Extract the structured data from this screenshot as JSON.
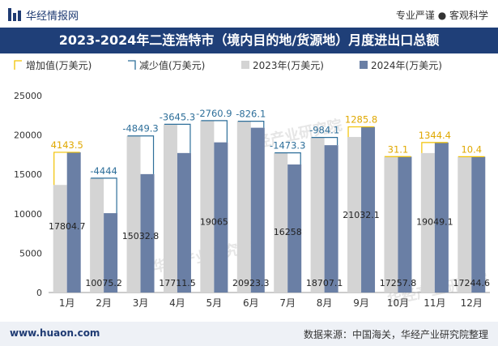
{
  "header": {
    "brand_name": "华经情报网",
    "slogan": "专业严谨 ● 客观科学"
  },
  "title": "2023-2024年二连浩特市（境内目的地/货源地）月度进出口总额",
  "footer": {
    "website": "www.huaon.com",
    "source": "数据来源：中国海关，华经产业研究院整理"
  },
  "colors": {
    "bar_2023": "#d4d4d4",
    "bar_2024": "#6a7fa5",
    "increase": "#f2c200",
    "decrease": "#2e6f9a",
    "title_bg": "#1f3f78"
  },
  "chart_data": {
    "type": "bar",
    "categories": [
      "1月",
      "2月",
      "3月",
      "4月",
      "5月",
      "6月",
      "7月",
      "8月",
      "9月",
      "10月",
      "11月",
      "12月"
    ],
    "series": [
      {
        "name": "2023年(万美元)",
        "values": [
          13661.2,
          14519.2,
          19882.1,
          21356.8,
          21825.9,
          21749.4,
          17731.3,
          19691.2,
          19746.3,
          17226.7,
          17704.7,
          17234.2
        ]
      },
      {
        "name": "2024年(万美元)",
        "values": [
          17804.7,
          10075.2,
          15032.8,
          17711.5,
          19065,
          20923.3,
          16258,
          18707.1,
          21032.1,
          17257.8,
          19049.1,
          17244.6
        ]
      }
    ],
    "changes": {
      "increase_name": "增加值(万美元)",
      "decrease_name": "减少值(万美元)",
      "values": [
        4143.5,
        -4444,
        -4849.3,
        -3645.3,
        -2760.9,
        -826.1,
        -1473.3,
        -984.1,
        1285.8,
        31.1,
        1344.4,
        10.4
      ],
      "labels": [
        "4143.5",
        "-4444",
        "-4849.3",
        "-3645.3",
        "-2760.9",
        "-826.1",
        "-1473.3",
        "-984.1",
        "1285.8",
        "31.1",
        "1344.4",
        "10.4"
      ]
    },
    "value_labels_2024": [
      "17804.7",
      "10075.2",
      "15032.8",
      "17711.5",
      "19065",
      "20923.3",
      "16258",
      "18707.1",
      "21032.1",
      "17257.8",
      "19049.1",
      "17244.6"
    ],
    "y_ticks": [
      "0",
      "5000",
      "10000",
      "15000",
      "20000",
      "25000"
    ],
    "ylim": [
      0,
      25000
    ],
    "legend_position": "top-left",
    "grid": false,
    "watermark": "华经产业研究院"
  }
}
